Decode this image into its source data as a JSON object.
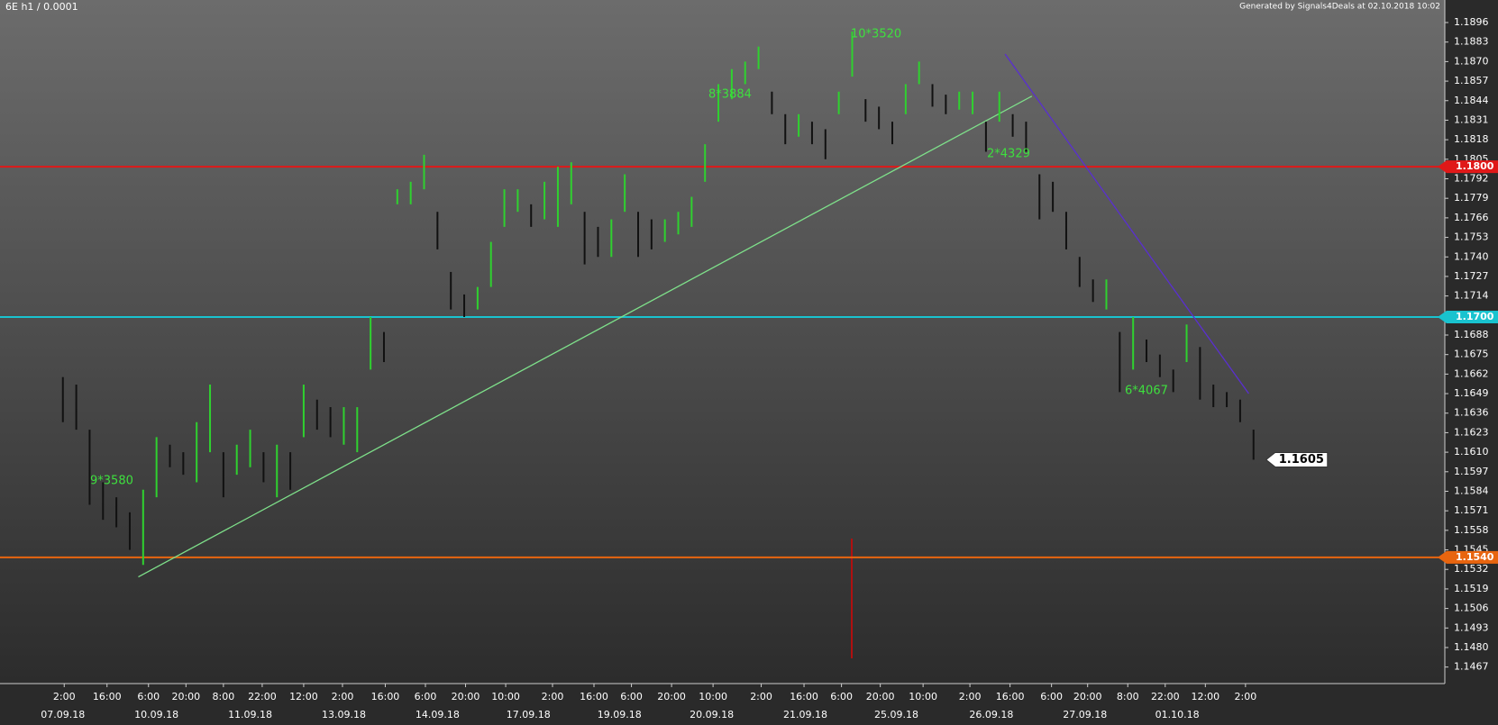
{
  "chart_data": {
    "type": "range",
    "title": "6E h1 / 0.0001",
    "subtitle": "Generated by Signals4Deals at 02.10.2018 10:02",
    "color": "#111111",
    "xlim": [
      -4.7,
      103.3
    ],
    "ylim": [
      1.1456,
      1.1911
    ],
    "low": [
      1.163,
      1.1625,
      1.1575,
      1.1565,
      1.156,
      1.1545,
      1.1535,
      1.158,
      1.16,
      1.1595,
      1.159,
      1.161,
      1.158,
      1.1595,
      1.16,
      1.159,
      1.158,
      1.1585,
      1.162,
      1.1625,
      1.162,
      1.1615,
      1.161,
      1.1665,
      1.167,
      1.1775,
      1.1775,
      1.1785,
      1.1745,
      1.1705,
      1.17,
      1.1705,
      1.172,
      1.176,
      1.177,
      1.176,
      1.1765,
      1.176,
      1.1775,
      1.1735,
      1.174,
      1.174,
      1.177,
      1.174,
      1.1745,
      1.175,
      1.1755,
      1.176,
      1.179,
      1.183,
      1.1845,
      1.1855,
      1.1865,
      1.1835,
      1.1815,
      1.182,
      1.1815,
      1.1805,
      1.1835,
      1.186,
      1.183,
      1.1825,
      1.1815,
      1.1835,
      1.1855,
      1.184,
      1.1835,
      1.1838,
      1.1835,
      1.181,
      1.183,
      1.182,
      1.181,
      1.1765,
      1.177,
      1.1745,
      1.172,
      1.171,
      1.1705,
      1.165,
      1.1665,
      1.167,
      1.166,
      1.165,
      1.167,
      1.1645,
      1.164,
      1.164,
      1.163,
      1.1605
    ],
    "high": [
      1.166,
      1.1655,
      1.1625,
      1.159,
      1.158,
      1.157,
      1.1585,
      1.162,
      1.1615,
      1.161,
      1.163,
      1.1655,
      1.161,
      1.1615,
      1.1625,
      1.161,
      1.1615,
      1.161,
      1.1655,
      1.1645,
      1.164,
      1.164,
      1.164,
      1.17,
      1.169,
      1.1785,
      1.179,
      1.1808,
      1.177,
      1.173,
      1.1715,
      1.172,
      1.175,
      1.1785,
      1.1785,
      1.1775,
      1.179,
      1.18,
      1.1803,
      1.177,
      1.176,
      1.1765,
      1.1795,
      1.177,
      1.1765,
      1.1765,
      1.177,
      1.178,
      1.1815,
      1.1855,
      1.1865,
      1.187,
      1.188,
      1.185,
      1.1835,
      1.1835,
      1.183,
      1.1825,
      1.185,
      1.189,
      1.1845,
      1.184,
      1.183,
      1.1855,
      1.187,
      1.1855,
      1.1848,
      1.185,
      1.185,
      1.183,
      1.185,
      1.1835,
      1.183,
      1.1795,
      1.179,
      1.177,
      1.174,
      1.1725,
      1.1725,
      1.169,
      1.17,
      1.1685,
      1.1675,
      1.1665,
      1.1695,
      1.168,
      1.1655,
      1.165,
      1.1645,
      1.1625
    ],
    "yticks": [
      1.1467,
      {
        "value": 1.148,
        "label": "1.1480"
      },
      1.1493,
      1.1506,
      1.1519,
      1.1532,
      1.1545,
      1.1558,
      1.1571,
      1.1584,
      1.1597,
      {
        "value": 1.161,
        "label": "1.1610"
      },
      1.1623,
      1.1636,
      1.1649,
      1.1662,
      1.1675,
      1.1688,
      1.1714,
      1.1727,
      {
        "value": 1.174,
        "label": "1.1740"
      },
      1.1753,
      1.1766,
      1.1779,
      1.1792,
      1.1805,
      1.1818,
      1.1831,
      1.1844,
      1.1857,
      {
        "value": 1.187,
        "label": "1.1870"
      },
      1.1883,
      1.1896
    ],
    "xticks": [
      {
        "value": 0.1,
        "label": "2:00"
      },
      {
        "value": 3.3,
        "label": "16:00"
      },
      {
        "value": 6.4,
        "label": "6:00"
      },
      {
        "value": 9.2,
        "label": "20:00"
      },
      {
        "value": 12,
        "label": "8:00"
      },
      {
        "value": 14.9,
        "label": "22:00"
      },
      {
        "value": 18,
        "label": "12:00"
      },
      {
        "value": 20.9,
        "label": "2:00"
      },
      {
        "value": 24.1,
        "label": "16:00"
      },
      {
        "value": 27.1,
        "label": "6:00"
      },
      {
        "value": 30.1,
        "label": "20:00"
      },
      {
        "value": 33.1,
        "label": "10:00"
      },
      {
        "value": 36.6,
        "label": "2:00"
      },
      {
        "value": 39.7,
        "label": "16:00"
      },
      {
        "value": 42.5,
        "label": "6:00"
      },
      {
        "value": 45.5,
        "label": "20:00"
      },
      {
        "value": 48.6,
        "label": "10:00"
      },
      {
        "value": 52.2,
        "label": "2:00"
      },
      {
        "value": 55.4,
        "label": "16:00"
      },
      {
        "value": 58.2,
        "label": "6:00"
      },
      {
        "value": 61.1,
        "label": "20:00"
      },
      {
        "value": 64.3,
        "label": "10:00"
      },
      {
        "value": 67.8,
        "label": "2:00"
      },
      {
        "value": 70.8,
        "label": "16:00"
      },
      {
        "value": 73.9,
        "label": "6:00"
      },
      {
        "value": 76.6,
        "label": "20:00"
      },
      {
        "value": 79.6,
        "label": "8:00"
      },
      {
        "value": 82.4,
        "label": "22:00"
      },
      {
        "value": 85.4,
        "label": "12:00"
      },
      {
        "value": 88.4,
        "label": "2:00"
      }
    ],
    "date_ticks": [
      {
        "value": 0,
        "label": "07.09.18"
      },
      {
        "value": 7,
        "label": "10.09.18"
      },
      {
        "value": 14,
        "label": "11.09.18"
      },
      {
        "value": 21,
        "label": "13.09.18"
      },
      {
        "value": 28,
        "label": "14.09.18"
      },
      {
        "value": 34.8,
        "label": "17.09.18"
      },
      {
        "value": 41.6,
        "label": "19.09.18"
      },
      {
        "value": 48.5,
        "label": "20.09.18"
      },
      {
        "value": 55.5,
        "label": "21.09.18"
      },
      {
        "value": 62.3,
        "label": "25.09.18"
      },
      {
        "value": 69.4,
        "label": "26.09.18"
      },
      {
        "value": 76.4,
        "label": "27.09.18"
      },
      {
        "value": 83.3,
        "label": "01.10.18"
      }
    ],
    "levels": [
      {
        "value": 1.18,
        "label": "1.1800",
        "color": "#e01818"
      },
      {
        "value": 1.17,
        "label": "1.1700",
        "color": "#19c3cf"
      },
      {
        "value": 1.154,
        "label": "1.1540",
        "color": "#e8650f"
      }
    ],
    "last_price": 1.1605,
    "trend_lines": [
      {
        "color": "#7ee08a",
        "x": [
          5.64,
          72.43
        ],
        "y": [
          1.1527,
          1.1847
        ]
      },
      {
        "color": "#5a2fd0",
        "x": [
          70.43,
          88.64
        ],
        "y": [
          1.1875,
          1.1649
        ]
      }
    ],
    "annotations": [
      "9*3580",
      "10*3520",
      "8*3884",
      "2*4329",
      "6*4067"
    ]
  }
}
